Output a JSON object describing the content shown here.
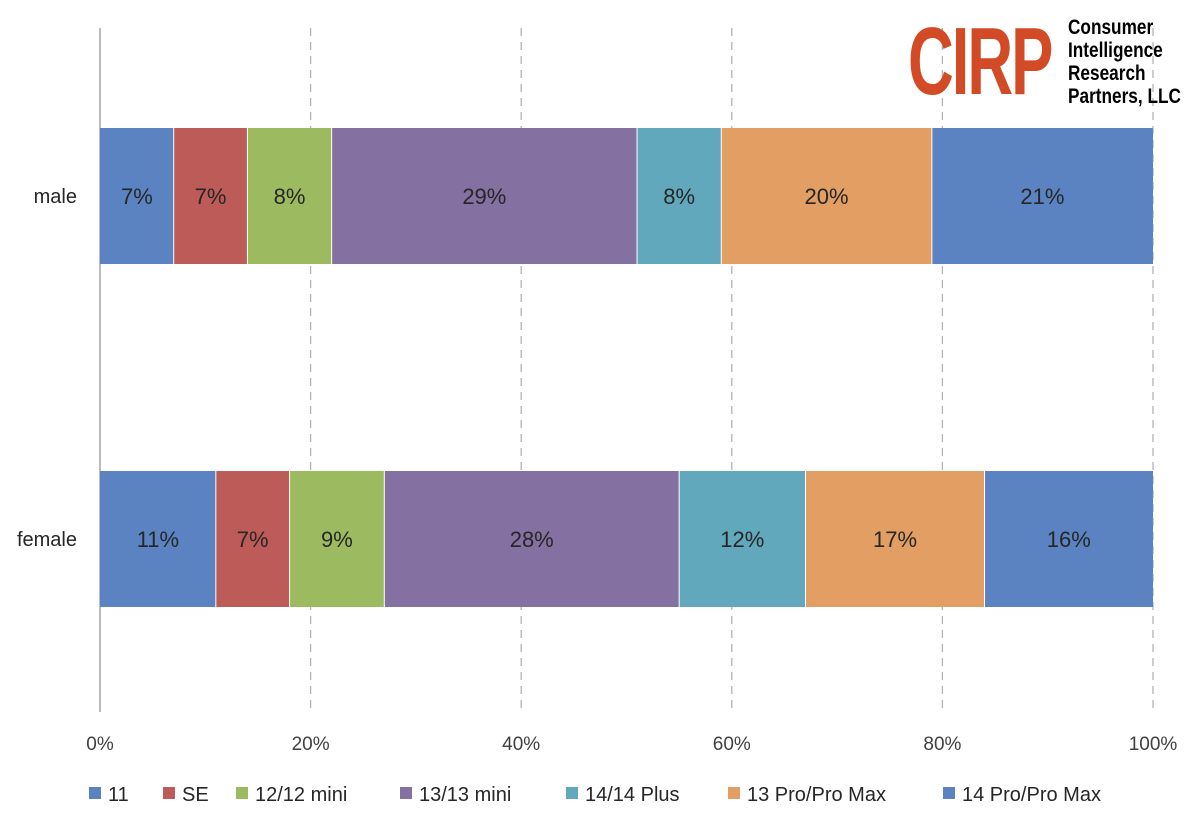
{
  "chart_data": {
    "type": "bar",
    "orientation": "horizontal",
    "stacked": true,
    "percent_stacked": true,
    "categories": [
      "male",
      "female"
    ],
    "series": [
      {
        "name": "11",
        "values": [
          7,
          11
        ],
        "labels": [
          "7%",
          "11%"
        ],
        "color": "#5b83c1"
      },
      {
        "name": "SE",
        "values": [
          7,
          7
        ],
        "labels": [
          "7%",
          "7%"
        ],
        "color": "#bd5b58"
      },
      {
        "name": "12/12 mini",
        "values": [
          8,
          9
        ],
        "labels": [
          "8%",
          "9%"
        ],
        "color": "#9cbb61"
      },
      {
        "name": "13/13 mini",
        "values": [
          29,
          28
        ],
        "labels": [
          "29%",
          "28%"
        ],
        "color": "#8470a1"
      },
      {
        "name": "14/14 Plus",
        "values": [
          8,
          12
        ],
        "labels": [
          "8%",
          "12%"
        ],
        "color": "#62a8bd"
      },
      {
        "name": "13 Pro/Pro Max",
        "values": [
          20,
          17
        ],
        "labels": [
          "20%",
          "17%"
        ],
        "color": "#e39e63"
      },
      {
        "name": "14 Pro/Pro Max",
        "values": [
          21,
          16
        ],
        "labels": [
          "21%",
          "16%"
        ],
        "color": "#5b83c1"
      }
    ],
    "xlim": [
      0,
      100
    ],
    "x_ticks": [
      "0%",
      "20%",
      "40%",
      "60%",
      "80%",
      "100%"
    ],
    "grid": "vertical dashed",
    "legend": "bottom",
    "title": "",
    "xlabel": "",
    "ylabel": ""
  },
  "logo": {
    "mark": "CIRP",
    "lines": [
      "Consumer",
      "Intelligence",
      "Research",
      "Partners, LLC"
    ],
    "color": "#d24a26"
  }
}
